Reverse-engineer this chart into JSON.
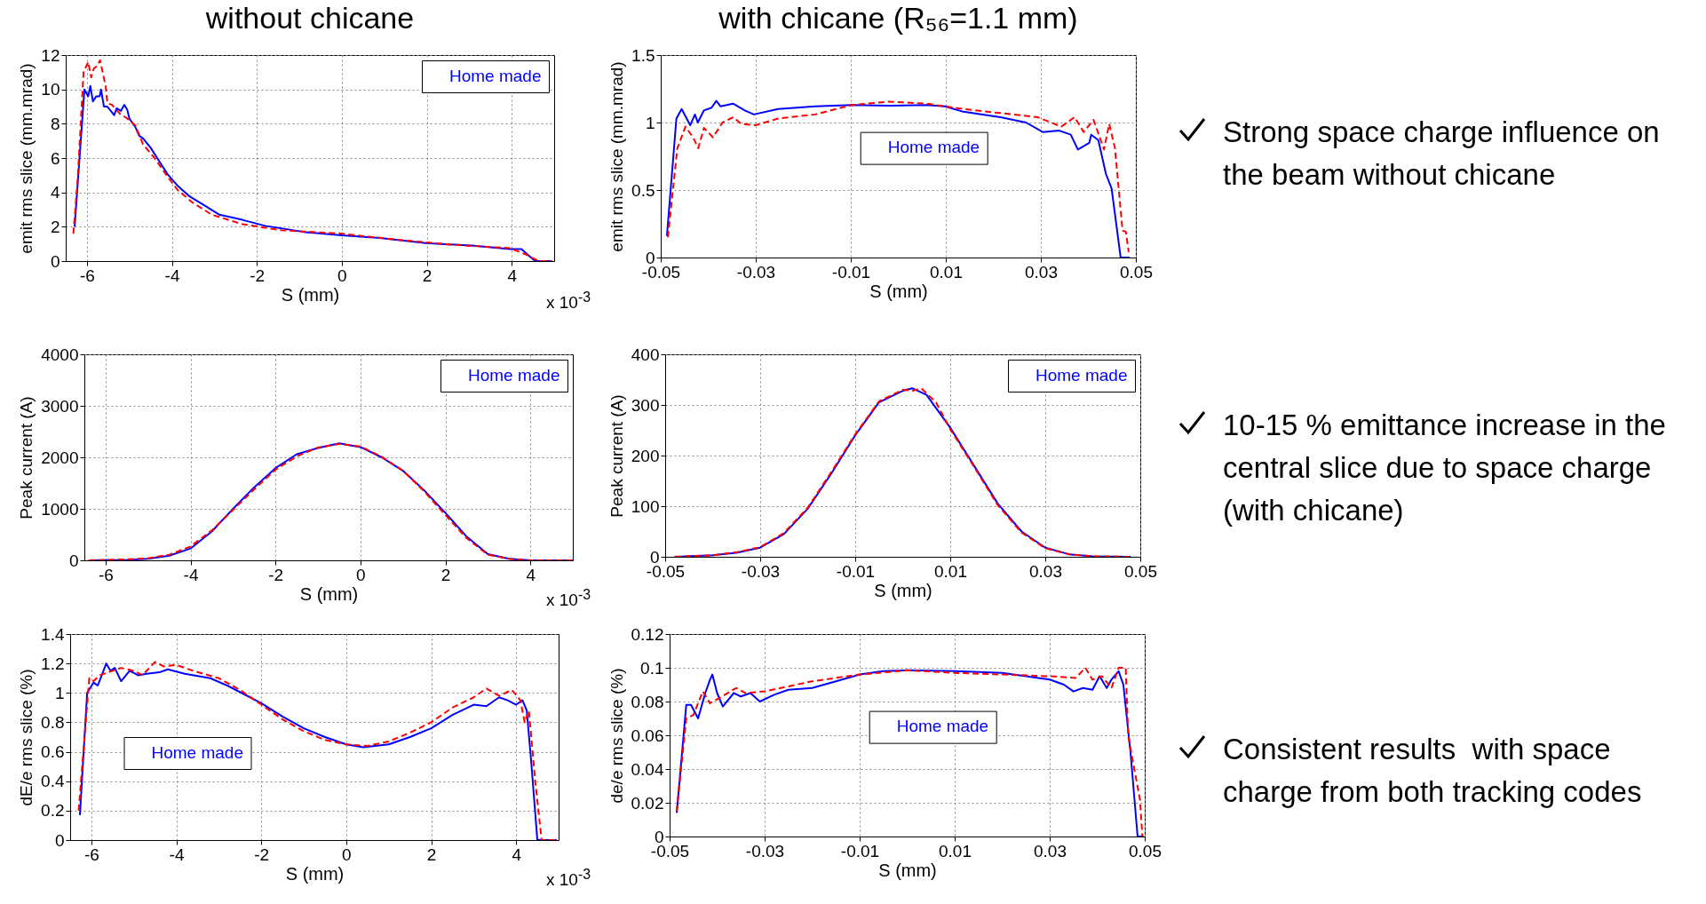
{
  "chart_data": [
    {
      "type": "line",
      "title": "without chicane",
      "xlabel": "S (mm)",
      "ylabel": "emit rms slice (mm.mrad)",
      "xlim": [
        -6.5,
        5
      ],
      "xticks": [
        -6,
        -4,
        -2,
        0,
        2,
        4
      ],
      "ylim": [
        0,
        12
      ],
      "yticks": [
        0,
        2,
        4,
        6,
        8,
        10,
        12
      ],
      "grid": true,
      "legend": "top right",
      "annotations": [
        "x 10$^{-3}$"
      ],
      "series": [
        {
          "name": "Home made",
          "color": "#0000ff",
          "line_style": "solid",
          "x": [
            -6.29,
            -6.06,
            -5.97,
            -5.92,
            -5.86,
            -5.78,
            -5.7,
            -5.67,
            -5.6,
            -5.52,
            -5.36,
            -5.3,
            -5.2,
            -5.12,
            -5.05,
            -5,
            -4.86,
            -4.77,
            -4.68,
            -4.5,
            -4.32,
            -4.1,
            -3.87,
            -3.6,
            -3.24,
            -2.88,
            -2.34,
            -1.8,
            -0.9,
            0,
            0.9,
            1.98,
            3.06,
            3.96,
            4.23,
            4.55,
            4.95
          ],
          "values": [
            2,
            10,
            9.6,
            10.2,
            9.3,
            9.6,
            9.6,
            10,
            9,
            9,
            8.5,
            8.9,
            8.75,
            9.1,
            8.8,
            8.3,
            7.8,
            7.3,
            7.15,
            6.6,
            5.9,
            5.05,
            4.4,
            3.8,
            3.25,
            2.7,
            2.4,
            2.05,
            1.7,
            1.5,
            1.35,
            1.05,
            0.9,
            0.7,
            0.7,
            0,
            0
          ]
        },
        {
          "color": "#ff0000",
          "line_style": "dashed",
          "x": [
            -6.32,
            -6.22,
            -6.08,
            -5.97,
            -5.9,
            -5.84,
            -5.75,
            -5.69,
            -5.63,
            -5.56,
            -5.52,
            -5.41,
            -5.23,
            -5.05,
            -4.86,
            -4.68,
            -4.41,
            -4.14,
            -3.87,
            -3.51,
            -3.06,
            -2.34,
            -1.44,
            0,
            1.26,
            2.61,
            3.96,
            4.32,
            4.64,
            4.95
          ],
          "values": [
            1.6,
            4.7,
            11,
            11.6,
            10.7,
            11.2,
            11.4,
            11.7,
            11,
            10.2,
            9.2,
            9.1,
            8.6,
            8.3,
            7.9,
            6.8,
            6,
            5.05,
            4.15,
            3.4,
            2.7,
            2.15,
            1.8,
            1.6,
            1.25,
            0.95,
            0.75,
            0.4,
            0,
            0
          ]
        }
      ]
    },
    {
      "type": "line",
      "title": "with chicane (R₅₆=1.1 mm)",
      "xlabel": "S (mm)",
      "ylabel": "emit rms slice (mm.mrad)",
      "xlim": [
        -0.05,
        0.05
      ],
      "xticks": [
        -0.05,
        -0.03,
        -0.01,
        0.01,
        0.03,
        0.05
      ],
      "ylim": [
        0,
        1.5
      ],
      "yticks": [
        0,
        0.5,
        1,
        1.5
      ],
      "grid": true,
      "legend": "center",
      "series": [
        {
          "name": "Home made",
          "color": "#0000ff",
          "line_style": "solid",
          "x": [
            -0.0487,
            -0.0467,
            -0.0456,
            -0.0438,
            -0.0428,
            -0.0422,
            -0.0409,
            -0.0393,
            -0.0383,
            -0.0374,
            -0.0348,
            -0.0323,
            -0.0304,
            -0.0253,
            -0.0175,
            -0.0098,
            -0.002,
            0.0059,
            0.0098,
            0.0137,
            0.0215,
            0.0269,
            0.0304,
            0.0339,
            0.0363,
            0.0378,
            0.0402,
            0.0406,
            0.0421,
            0.0437,
            0.0449,
            0.0468,
            0.0487
          ],
          "values": [
            0.16,
            1.03,
            1.1,
            0.98,
            1.06,
            1,
            1.09,
            1.11,
            1.16,
            1.12,
            1.14,
            1.09,
            1.06,
            1.1,
            1.12,
            1.13,
            1.125,
            1.13,
            1.12,
            1.08,
            1.04,
            1,
            0.93,
            0.94,
            0.91,
            0.8,
            0.85,
            0.91,
            0.87,
            0.62,
            0.51,
            0,
            0
          ]
        },
        {
          "color": "#ff0000",
          "line_style": "dashed",
          "x": [
            -0.0485,
            -0.0465,
            -0.0448,
            -0.0432,
            -0.0421,
            -0.0409,
            -0.039,
            -0.037,
            -0.0347,
            -0.0331,
            -0.03,
            -0.0253,
            -0.0175,
            -0.0098,
            -0.002,
            0.0059,
            0.0137,
            0.0215,
            0.0293,
            0.0343,
            0.0371,
            0.039,
            0.0411,
            0.0433,
            0.0444,
            0.0456,
            0.0472,
            0.0479,
            0.0485
          ],
          "values": [
            0.15,
            0.81,
            0.97,
            0.89,
            0.81,
            0.96,
            0.89,
            1,
            1.04,
            0.99,
            0.98,
            1.03,
            1.06,
            1.13,
            1.155,
            1.14,
            1.1,
            1.07,
            1.04,
            0.97,
            1.04,
            0.93,
            1.02,
            0.8,
            0.99,
            0.81,
            0.2,
            0.19,
            0.04
          ]
        }
      ]
    },
    {
      "type": "line",
      "xlabel": "S (mm)",
      "ylabel": "Peak current (A)",
      "xlim": [
        -6.5,
        5
      ],
      "xticks": [
        -6,
        -4,
        -2,
        0,
        2,
        4
      ],
      "ylim": [
        0,
        4000
      ],
      "yticks": [
        0,
        1000,
        2000,
        3000,
        4000
      ],
      "grid": true,
      "legend": "top right",
      "annotations": [
        "x 10$^{-3}$"
      ],
      "series": [
        {
          "name": "Home made",
          "color": "#0000ff",
          "line_style": "solid",
          "x": [
            -6.4,
            -5.5,
            -5,
            -4.5,
            -4,
            -3.5,
            -3,
            -2.5,
            -2,
            -1.5,
            -1,
            -0.5,
            0,
            0.5,
            1,
            1.5,
            2,
            2.5,
            3,
            3.5,
            4,
            5
          ],
          "values": [
            0,
            10,
            30,
            90,
            230,
            560,
            1000,
            1420,
            1790,
            2060,
            2180,
            2270,
            2200,
            2000,
            1740,
            1360,
            920,
            460,
            120,
            30,
            0,
            0
          ]
        },
        {
          "color": "#ff0000",
          "line_style": "dashed",
          "x": [
            -6.4,
            -5.5,
            -5,
            -4.5,
            -4,
            -3.5,
            -3,
            -2.5,
            -2,
            -1.5,
            -1,
            -0.5,
            0,
            0.5,
            1,
            1.5,
            2,
            2.5,
            3,
            3.5,
            4,
            5
          ],
          "values": [
            0,
            20,
            40,
            110,
            270,
            580,
            980,
            1380,
            1760,
            2020,
            2190,
            2260,
            2210,
            2010,
            1740,
            1340,
            880,
            430,
            110,
            30,
            0,
            0
          ]
        }
      ]
    },
    {
      "type": "line",
      "xlabel": "S (mm)",
      "ylabel": "Peak current (A)",
      "xlim": [
        -0.05,
        0.05
      ],
      "xticks": [
        -0.05,
        -0.03,
        -0.01,
        0.01,
        0.03,
        0.05
      ],
      "ylim": [
        0,
        400
      ],
      "yticks": [
        0,
        100,
        200,
        300,
        400
      ],
      "grid": true,
      "legend": "top right",
      "series": [
        {
          "name": "Home made",
          "color": "#0000ff",
          "line_style": "solid",
          "x": [
            -0.048,
            -0.04,
            -0.035,
            -0.03,
            -0.025,
            -0.02,
            -0.015,
            -0.01,
            -0.005,
            0,
            0.002,
            0.005,
            0.01,
            0.015,
            0.02,
            0.025,
            0.03,
            0.035,
            0.04,
            0.048
          ],
          "values": [
            0,
            3,
            8,
            18,
            45,
            95,
            165,
            240,
            305,
            328,
            333,
            320,
            255,
            180,
            105,
            50,
            18,
            5,
            1,
            0
          ]
        },
        {
          "color": "#ff0000",
          "line_style": "dashed",
          "x": [
            -0.048,
            -0.04,
            -0.035,
            -0.03,
            -0.025,
            -0.02,
            -0.015,
            -0.01,
            -0.005,
            0,
            0.002,
            0.004,
            0.007,
            0.01,
            0.015,
            0.02,
            0.025,
            0.03,
            0.035,
            0.04,
            0.048
          ],
          "values": [
            0,
            3,
            9,
            19,
            47,
            97,
            168,
            242,
            307,
            330,
            328,
            332,
            305,
            252,
            178,
            102,
            48,
            17,
            5,
            1,
            0
          ]
        }
      ]
    },
    {
      "type": "line",
      "xlabel": "S (mm)",
      "ylabel": "dE/e rms slice (%)",
      "xlim": [
        -6.5,
        5
      ],
      "xticks": [
        -6,
        -4,
        -2,
        0,
        2,
        4
      ],
      "ylim": [
        0,
        1.4
      ],
      "yticks": [
        0,
        0.2,
        0.4,
        0.6,
        0.8,
        1,
        1.2,
        1.4
      ],
      "grid": true,
      "legend": "bottom left",
      "annotations": [
        "x 10$^{-3}$"
      ],
      "series": [
        {
          "name": "Home made",
          "color": "#0000ff",
          "line_style": "solid",
          "x": [
            -6.27,
            -6.1,
            -5.95,
            -5.85,
            -5.65,
            -5.55,
            -5.45,
            -5.3,
            -5.1,
            -4.9,
            -4.7,
            -4.4,
            -4.2,
            -3.8,
            -3.2,
            -2.8,
            -2,
            -1.5,
            -1,
            -0.5,
            0,
            0.4,
            1,
            1.5,
            2,
            2.5,
            3,
            3.3,
            3.6,
            3.8,
            4,
            4.15,
            4.25,
            4.35,
            4.5,
            4.96
          ],
          "values": [
            0.17,
            1,
            1.07,
            1.05,
            1.2,
            1.15,
            1.17,
            1.08,
            1.15,
            1.12,
            1.13,
            1.14,
            1.16,
            1.13,
            1.1,
            1.05,
            0.93,
            0.84,
            0.76,
            0.7,
            0.65,
            0.63,
            0.65,
            0.7,
            0.76,
            0.85,
            0.92,
            0.91,
            0.97,
            0.95,
            0.92,
            0.95,
            0.88,
            0.55,
            0,
            0
          ]
        },
        {
          "color": "#ff0000",
          "line_style": "dashed",
          "x": [
            -6.3,
            -6.05,
            -5.95,
            -5.8,
            -5.5,
            -5.3,
            -5,
            -4.8,
            -4.5,
            -4.3,
            -4,
            -3.6,
            -3,
            -2.5,
            -2,
            -1.5,
            -1,
            -0.5,
            0,
            0.5,
            1,
            1.5,
            2,
            2.5,
            3,
            3.3,
            3.6,
            3.9,
            4.1,
            4.2,
            4.3,
            4.45,
            4.6,
            4.96
          ],
          "values": [
            0.2,
            1.1,
            1.08,
            1.12,
            1.15,
            1.17,
            1.15,
            1.12,
            1.21,
            1.18,
            1.19,
            1.15,
            1.1,
            1.02,
            0.92,
            0.82,
            0.74,
            0.68,
            0.65,
            0.64,
            0.67,
            0.73,
            0.8,
            0.9,
            0.97,
            1.03,
            0.98,
            1.02,
            0.95,
            0.8,
            0.88,
            0.4,
            0,
            0
          ]
        }
      ]
    },
    {
      "type": "line",
      "xlabel": "S (mm)",
      "ylabel": "de/e rms slice (%)",
      "xlim": [
        -0.05,
        0.05
      ],
      "xticks": [
        -0.05,
        -0.03,
        -0.01,
        0.01,
        0.03,
        0.05
      ],
      "ylim": [
        0,
        0.12
      ],
      "yticks": [
        0,
        0.02,
        0.04,
        0.06,
        0.08,
        0.1,
        0.12
      ],
      "grid": true,
      "legend": "center",
      "series": [
        {
          "name": "Home made",
          "color": "#0000ff",
          "line_style": "solid",
          "x": [
            -0.0485,
            -0.0465,
            -0.0455,
            -0.044,
            -0.0425,
            -0.0415,
            -0.041,
            -0.04,
            -0.0388,
            -0.0365,
            -0.035,
            -0.033,
            -0.031,
            -0.028,
            -0.025,
            -0.02,
            -0.015,
            -0.01,
            -0.005,
            0,
            0.01,
            0.02,
            0.025,
            0.03,
            0.033,
            0.035,
            0.037,
            0.039,
            0.0405,
            0.042,
            0.043,
            0.0445,
            0.0455,
            0.047,
            0.0485,
            0.0498
          ],
          "values": [
            0.014,
            0.078,
            0.078,
            0.07,
            0.085,
            0.093,
            0.096,
            0.085,
            0.077,
            0.085,
            0.083,
            0.085,
            0.08,
            0.084,
            0.087,
            0.088,
            0.092,
            0.096,
            0.098,
            0.0985,
            0.098,
            0.097,
            0.095,
            0.093,
            0.09,
            0.086,
            0.088,
            0.087,
            0.095,
            0.088,
            0.093,
            0.098,
            0.09,
            0.05,
            0,
            0
          ]
        },
        {
          "color": "#ff0000",
          "line_style": "dashed",
          "x": [
            -0.0485,
            -0.0465,
            -0.045,
            -0.043,
            -0.0415,
            -0.039,
            -0.036,
            -0.034,
            -0.03,
            -0.025,
            -0.02,
            -0.01,
            0,
            0.01,
            0.02,
            0.03,
            0.0355,
            0.0375,
            0.039,
            0.041,
            0.043,
            0.0445,
            0.046,
            0.0465,
            0.0478,
            0.049,
            0.0495
          ],
          "values": [
            0.015,
            0.07,
            0.072,
            0.086,
            0.079,
            0.083,
            0.088,
            0.085,
            0.086,
            0.089,
            0.092,
            0.096,
            0.0985,
            0.097,
            0.096,
            0.095,
            0.094,
            0.1,
            0.093,
            0.095,
            0.088,
            0.1,
            0.1,
            0.06,
            0.04,
            0.022,
            0
          ]
        }
      ]
    },
    {
      "type": "other",
      "annotations": [
        "Strong space charge influence on the beam without chicane",
        "10-15 % emittance increase in the central slice due to space charge (with chicane)",
        "Consistent results  with space charge from both tracking codes"
      ]
    }
  ]
}
